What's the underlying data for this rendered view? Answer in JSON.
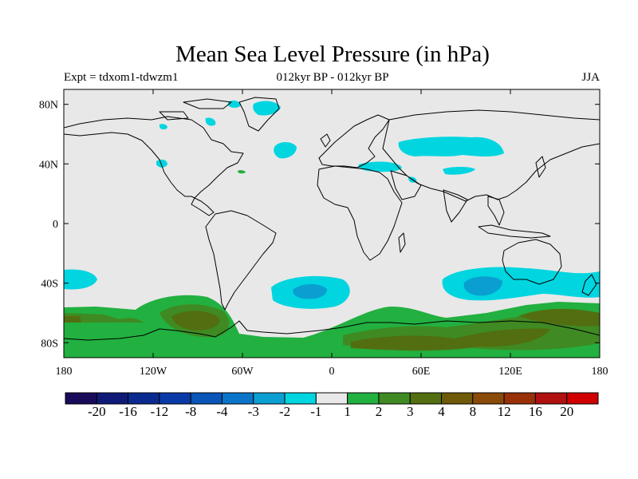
{
  "title": "Mean Sea Level Pressure (in hPa)",
  "subtitle_left": "Expt = tdxom1-tdwzm1",
  "subtitle_center": "012kyr BP - 012kyr BP",
  "subtitle_right": "JJA",
  "lat_ticks": [
    "80N",
    "40N",
    "0",
    "40S",
    "80S"
  ],
  "lon_ticks": [
    "180",
    "120W",
    "60W",
    "0",
    "60E",
    "120E",
    "180"
  ],
  "colorbar": {
    "colors": [
      "#1a0a5a",
      "#0f1a78",
      "#0a2a90",
      "#0a3aa8",
      "#0a55b8",
      "#0a75c8",
      "#0a9fd0",
      "#00d5e0",
      "#e8e8e8",
      "#22b040",
      "#3f8a22",
      "#526e10",
      "#6e5a08",
      "#8a4a08",
      "#9a3008",
      "#b01010",
      "#d00000"
    ],
    "labels": [
      "-20",
      "-16",
      "-12",
      "-8",
      "-4",
      "-3",
      "-2",
      "-1",
      "1",
      "2",
      "3",
      "4",
      "8",
      "12",
      "16",
      "20"
    ]
  }
}
